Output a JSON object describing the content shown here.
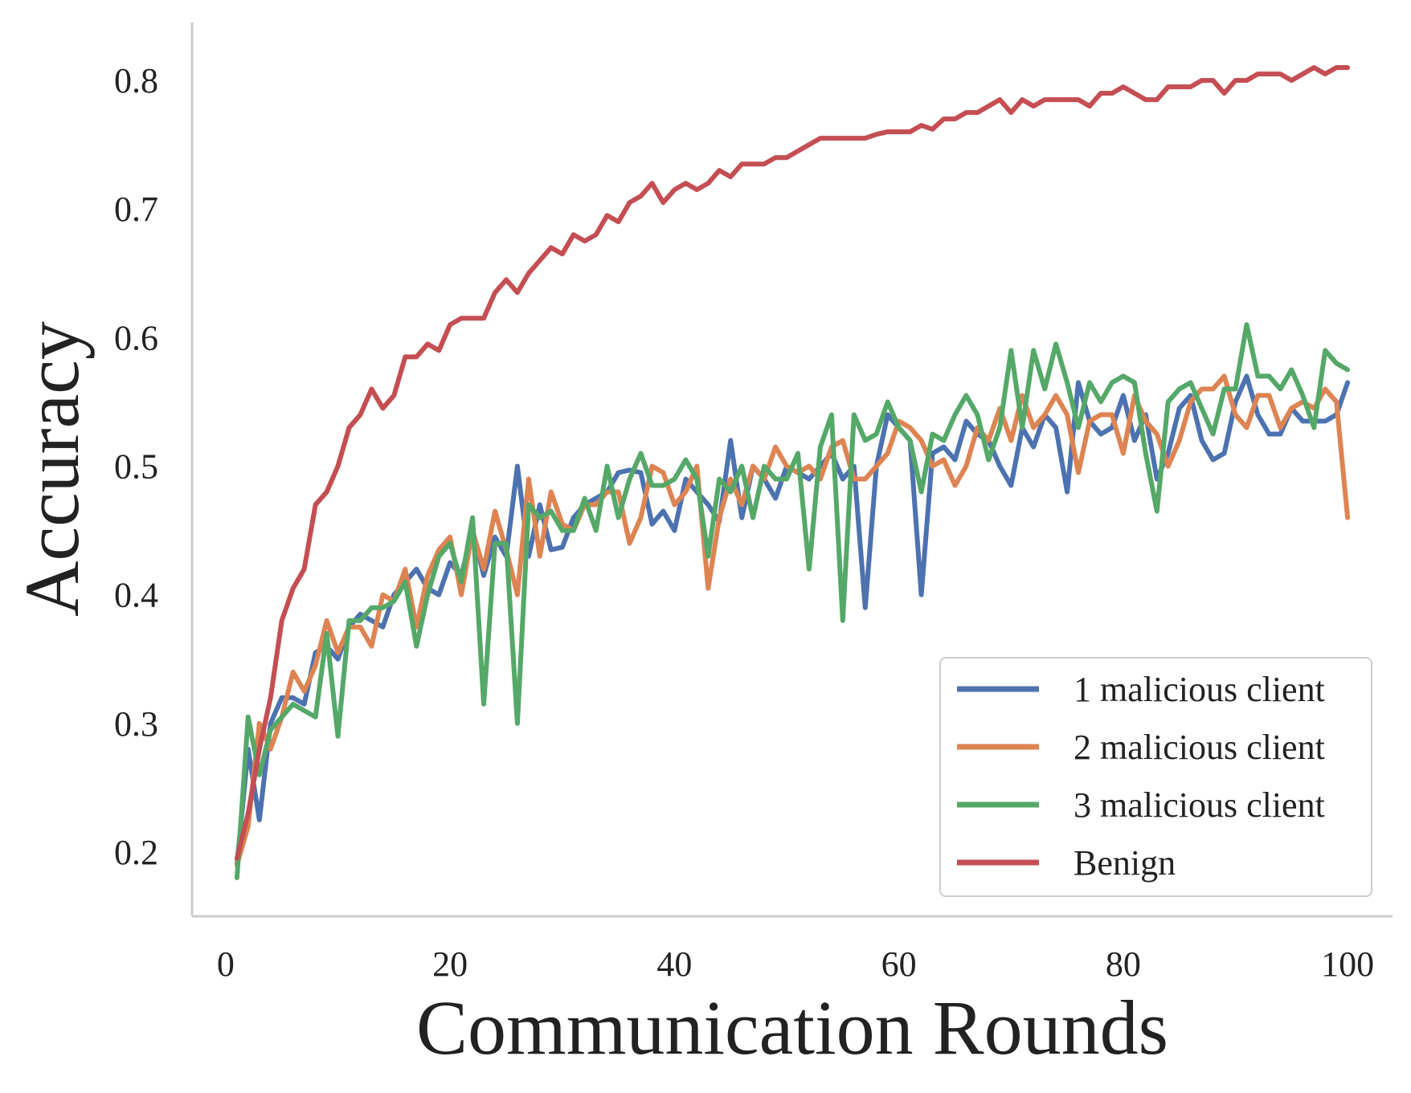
{
  "chart_data": {
    "type": "line",
    "title": "",
    "xlabel": "Communication Rounds",
    "ylabel": "Accuracy",
    "xlim": [
      -3,
      104
    ],
    "ylim": [
      0.15,
      0.845
    ],
    "xticks": [
      0,
      20,
      40,
      60,
      80,
      100
    ],
    "yticks": [
      0.2,
      0.3,
      0.4,
      0.5,
      0.6,
      0.7,
      0.8
    ],
    "xtick_labels": [
      "0",
      "20",
      "40",
      "60",
      "80",
      "100"
    ],
    "ytick_labels": [
      "0.2",
      "0.3",
      "0.4",
      "0.5",
      "0.6",
      "0.7",
      "0.8"
    ],
    "grid": false,
    "legend_position": "lower-right",
    "x": [
      1,
      2,
      3,
      4,
      5,
      6,
      7,
      8,
      9,
      10,
      11,
      12,
      13,
      14,
      15,
      16,
      17,
      18,
      19,
      20,
      21,
      22,
      23,
      24,
      25,
      26,
      27,
      28,
      29,
      30,
      31,
      32,
      33,
      34,
      35,
      36,
      37,
      38,
      39,
      40,
      41,
      42,
      43,
      44,
      45,
      46,
      47,
      48,
      49,
      50,
      51,
      52,
      53,
      54,
      55,
      56,
      57,
      58,
      59,
      60,
      61,
      62,
      63,
      64,
      65,
      66,
      67,
      68,
      69,
      70,
      71,
      72,
      73,
      74,
      75,
      76,
      77,
      78,
      79,
      80,
      81,
      82,
      83,
      84,
      85,
      86,
      87,
      88,
      89,
      90,
      91,
      92,
      93,
      94,
      95,
      96,
      97,
      98,
      99,
      100
    ],
    "series": [
      {
        "name": "1 malicious client",
        "color": "#4c72b0",
        "values": [
          0.19,
          0.28,
          0.225,
          0.3,
          0.32,
          0.32,
          0.315,
          0.355,
          0.36,
          0.35,
          0.375,
          0.385,
          0.38,
          0.375,
          0.4,
          0.41,
          0.42,
          0.405,
          0.4,
          0.425,
          0.415,
          0.45,
          0.415,
          0.445,
          0.43,
          0.5,
          0.43,
          0.47,
          0.435,
          0.437,
          0.46,
          0.47,
          0.475,
          0.48,
          0.495,
          0.497,
          0.495,
          0.455,
          0.465,
          0.45,
          0.49,
          0.48,
          0.47,
          0.457,
          0.52,
          0.46,
          0.5,
          0.49,
          0.475,
          0.5,
          0.495,
          0.49,
          0.5,
          0.51,
          0.49,
          0.5,
          0.39,
          0.5,
          0.54,
          0.53,
          0.52,
          0.4,
          0.51,
          0.515,
          0.505,
          0.535,
          0.525,
          0.52,
          0.5,
          0.485,
          0.53,
          0.515,
          0.54,
          0.53,
          0.48,
          0.565,
          0.535,
          0.525,
          0.53,
          0.555,
          0.52,
          0.54,
          0.49,
          0.51,
          0.545,
          0.555,
          0.52,
          0.505,
          0.51,
          0.55,
          0.57,
          0.54,
          0.525,
          0.525,
          0.545,
          0.535,
          0.535,
          0.535,
          0.54,
          0.565
        ]
      },
      {
        "name": "2 malicious client",
        "color": "#dd8452",
        "values": [
          0.19,
          0.22,
          0.3,
          0.28,
          0.305,
          0.34,
          0.325,
          0.345,
          0.38,
          0.355,
          0.375,
          0.375,
          0.36,
          0.4,
          0.395,
          0.42,
          0.375,
          0.415,
          0.435,
          0.445,
          0.4,
          0.45,
          0.42,
          0.465,
          0.435,
          0.4,
          0.49,
          0.43,
          0.48,
          0.455,
          0.45,
          0.47,
          0.47,
          0.48,
          0.48,
          0.44,
          0.46,
          0.5,
          0.495,
          0.47,
          0.48,
          0.5,
          0.405,
          0.46,
          0.49,
          0.47,
          0.5,
          0.49,
          0.515,
          0.5,
          0.495,
          0.5,
          0.49,
          0.515,
          0.52,
          0.49,
          0.49,
          0.5,
          0.51,
          0.535,
          0.53,
          0.52,
          0.5,
          0.505,
          0.485,
          0.5,
          0.53,
          0.52,
          0.545,
          0.52,
          0.555,
          0.53,
          0.54,
          0.555,
          0.54,
          0.495,
          0.535,
          0.54,
          0.54,
          0.51,
          0.555,
          0.535,
          0.525,
          0.5,
          0.52,
          0.55,
          0.56,
          0.56,
          0.57,
          0.54,
          0.53,
          0.555,
          0.555,
          0.53,
          0.545,
          0.55,
          0.545,
          0.56,
          0.55,
          0.46
        ]
      },
      {
        "name": "3 malicious client",
        "color": "#55a868",
        "values": [
          0.18,
          0.305,
          0.26,
          0.295,
          0.305,
          0.315,
          0.31,
          0.305,
          0.37,
          0.29,
          0.38,
          0.38,
          0.39,
          0.39,
          0.395,
          0.41,
          0.36,
          0.4,
          0.43,
          0.44,
          0.41,
          0.46,
          0.315,
          0.44,
          0.44,
          0.3,
          0.47,
          0.46,
          0.465,
          0.45,
          0.45,
          0.475,
          0.45,
          0.5,
          0.46,
          0.49,
          0.51,
          0.485,
          0.485,
          0.49,
          0.505,
          0.49,
          0.43,
          0.49,
          0.48,
          0.5,
          0.46,
          0.5,
          0.49,
          0.49,
          0.51,
          0.42,
          0.515,
          0.54,
          0.38,
          0.54,
          0.52,
          0.525,
          0.55,
          0.53,
          0.52,
          0.48,
          0.525,
          0.52,
          0.54,
          0.555,
          0.54,
          0.505,
          0.53,
          0.59,
          0.53,
          0.59,
          0.56,
          0.595,
          0.565,
          0.53,
          0.565,
          0.55,
          0.565,
          0.57,
          0.565,
          0.51,
          0.465,
          0.55,
          0.56,
          0.565,
          0.545,
          0.525,
          0.56,
          0.56,
          0.61,
          0.57,
          0.57,
          0.56,
          0.575,
          0.555,
          0.53,
          0.59,
          0.58,
          0.575
        ]
      },
      {
        "name": "Benign",
        "color": "#c44e52",
        "values": [
          0.195,
          0.23,
          0.28,
          0.32,
          0.38,
          0.405,
          0.42,
          0.47,
          0.48,
          0.5,
          0.53,
          0.54,
          0.56,
          0.545,
          0.555,
          0.585,
          0.585,
          0.595,
          0.59,
          0.61,
          0.615,
          0.615,
          0.615,
          0.635,
          0.645,
          0.635,
          0.65,
          0.66,
          0.67,
          0.665,
          0.68,
          0.675,
          0.68,
          0.695,
          0.69,
          0.705,
          0.71,
          0.72,
          0.705,
          0.715,
          0.72,
          0.715,
          0.72,
          0.73,
          0.725,
          0.735,
          0.735,
          0.735,
          0.74,
          0.74,
          0.745,
          0.75,
          0.755,
          0.755,
          0.755,
          0.755,
          0.755,
          0.758,
          0.76,
          0.76,
          0.76,
          0.765,
          0.762,
          0.77,
          0.77,
          0.775,
          0.775,
          0.78,
          0.785,
          0.775,
          0.785,
          0.78,
          0.785,
          0.785,
          0.785,
          0.785,
          0.78,
          0.79,
          0.79,
          0.795,
          0.79,
          0.785,
          0.785,
          0.795,
          0.795,
          0.795,
          0.8,
          0.8,
          0.79,
          0.8,
          0.8,
          0.805,
          0.805,
          0.805,
          0.8,
          0.805,
          0.81,
          0.805,
          0.81,
          0.81
        ]
      }
    ]
  }
}
